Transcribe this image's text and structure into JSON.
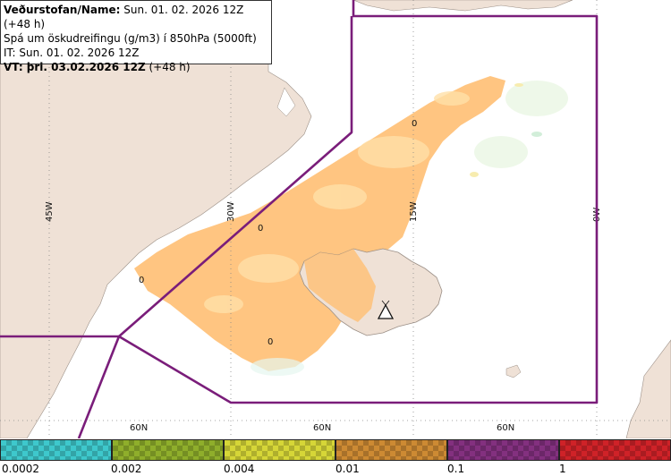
{
  "header": {
    "line1_bold": "Veðurstofan/Name:",
    "line1_rest": " Sun. 01. 02. 2026 12Z (+48 h)",
    "line2": "Spá um öskudreifingu (g/m3) í 850hPa (5000ft)",
    "line3": "IT: Sun. 01. 02. 2026 12Z",
    "line4_bold": "VT: þri. 03.02.2026 12Z",
    "line4_rest": " (+48 h)"
  },
  "grid_labels": {
    "lon_45w": "45W",
    "lon_30w": "30W",
    "lon_15w": "15W",
    "lon_0w": "0W",
    "lat_60n_a": "60N",
    "lat_60n_b": "60N",
    "lat_60n_c": "60N"
  },
  "contour_labels": [
    "0",
    "0",
    "0",
    "0"
  ],
  "icons": [
    "volcano-icon"
  ],
  "colors": {
    "land": "#efe1d6",
    "sea": "#ffffff",
    "ash": "#ffbf73",
    "boundary": "#7a1d7a",
    "grid": "#888888"
  },
  "legend": {
    "ticks": [
      "0.0002",
      "0.002",
      "0.004",
      "0.01",
      "0.1",
      "1"
    ],
    "colors": [
      "#3ec8cc",
      "#8fae2b",
      "#d6d637",
      "#cd8a33",
      "#83307f",
      "#cf2228"
    ]
  }
}
